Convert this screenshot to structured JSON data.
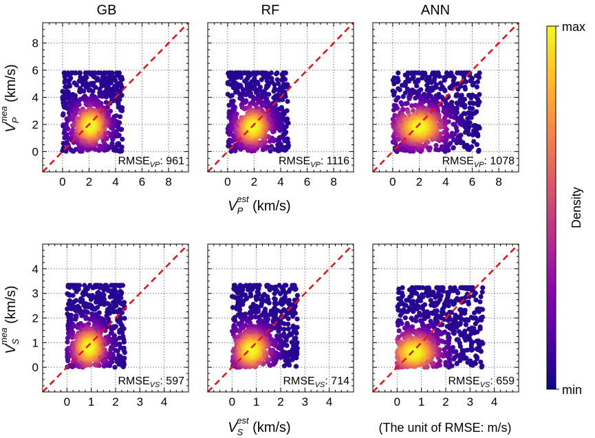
{
  "figure": {
    "column_titles": [
      "GB",
      "RF",
      "ANN"
    ],
    "row_labels": {
      "top": {
        "base": "V",
        "sub": "P",
        "sup": "mea",
        "unit": " (km/s)"
      },
      "bottom": {
        "base": "V",
        "sub": "S",
        "sup": "mea",
        "unit": " (km/s)"
      }
    },
    "x_labels": {
      "top": {
        "base": "V",
        "sub": "P",
        "sup": "est",
        "unit": " (km/s)"
      },
      "bottom": {
        "base": "V",
        "sub": "S",
        "sup": "est",
        "unit": " (km/s)"
      }
    },
    "unit_note": "(The unit of RMSE: m/s)",
    "colorbar": {
      "top_label": "max",
      "bottom_label": "min",
      "title": "Density",
      "colors": [
        "#0d0887",
        "#5302a3",
        "#8b0aa5",
        "#b83289",
        "#db5c68",
        "#f48849",
        "#febd2a",
        "#f0f921"
      ]
    }
  },
  "chart_data": [
    {
      "type": "scatter",
      "title": "GB",
      "row": "top",
      "col": 0,
      "xlabel": "V_P^est (km/s)",
      "ylabel": "V_P^mea (km/s)",
      "xlim": [
        -1.5,
        9.5
      ],
      "ylim": [
        -1.5,
        9.5
      ],
      "ticks": [
        0,
        2,
        4,
        6,
        8
      ],
      "tick_labels": [
        "0",
        "2",
        "4",
        "6",
        "8"
      ],
      "reference_line": "y = x",
      "rmse": {
        "text": "RMSE",
        "sub": "VP",
        "value": ": 961",
        "number": 961
      },
      "density_peak": [
        2.1,
        1.9
      ],
      "cloud_x": [
        0.0,
        5.5
      ],
      "cloud_y": [
        0.0,
        6.1
      ]
    },
    {
      "type": "scatter",
      "title": "RF",
      "row": "top",
      "col": 1,
      "xlabel": "V_P^est (km/s)",
      "ylabel": "V_P^mea (km/s)",
      "xlim": [
        -1.5,
        9.5
      ],
      "ylim": [
        -1.5,
        9.5
      ],
      "ticks": [
        0,
        2,
        4,
        6,
        8
      ],
      "tick_labels": [
        "0",
        "2",
        "4",
        "6",
        "8"
      ],
      "reference_line": "y = x",
      "rmse": {
        "text": "RMSE",
        "sub": "VP",
        "value": ": 1116",
        "number": 1116
      },
      "density_peak": [
        1.9,
        1.8
      ],
      "cloud_x": [
        0.0,
        5.6
      ],
      "cloud_y": [
        0.0,
        6.1
      ]
    },
    {
      "type": "scatter",
      "title": "ANN",
      "row": "top",
      "col": 2,
      "xlabel": "V_P^est (km/s)",
      "ylabel": "V_P^mea (km/s)",
      "xlim": [
        -1.5,
        9.5
      ],
      "ylim": [
        -1.5,
        9.5
      ],
      "ticks": [
        0,
        2,
        4,
        6,
        8
      ],
      "tick_labels": [
        "0",
        "2",
        "4",
        "6",
        "8"
      ],
      "reference_line": "y = x",
      "rmse": {
        "text": "RMSE",
        "sub": "VP",
        "value": ": 1078",
        "number": 1078
      },
      "density_peak": [
        2.0,
        1.8
      ],
      "cloud_x": [
        0.0,
        8.0
      ],
      "cloud_y": [
        0.0,
        6.1
      ]
    },
    {
      "type": "scatter",
      "title": "GB",
      "row": "bottom",
      "col": 0,
      "xlabel": "V_S^est (km/s)",
      "ylabel": "V_S^mea (km/s)",
      "xlim": [
        -1.0,
        5.0
      ],
      "ylim": [
        -1.0,
        5.0
      ],
      "ticks": [
        0,
        1,
        2,
        3,
        4
      ],
      "tick_labels": [
        "0",
        "1",
        "2",
        "3",
        "4"
      ],
      "reference_line": "y = x",
      "rmse": {
        "text": "RMSE",
        "sub": "VS",
        "value": ": 597",
        "number": 597
      },
      "density_peak": [
        0.9,
        0.8
      ],
      "cloud_x": [
        0.0,
        2.9
      ],
      "cloud_y": [
        0.0,
        3.5
      ]
    },
    {
      "type": "scatter",
      "title": "RF",
      "row": "bottom",
      "col": 1,
      "xlabel": "V_S^est (km/s)",
      "ylabel": "V_S^mea (km/s)",
      "xlim": [
        -1.0,
        5.0
      ],
      "ylim": [
        -1.0,
        5.0
      ],
      "ticks": [
        0,
        1,
        2,
        3,
        4
      ],
      "tick_labels": [
        "0",
        "1",
        "2",
        "3",
        "4"
      ],
      "reference_line": "y = x",
      "rmse": {
        "text": "RMSE",
        "sub": "VS",
        "value": ": 714",
        "number": 714
      },
      "density_peak": [
        0.8,
        0.7
      ],
      "cloud_x": [
        0.0,
        3.3
      ],
      "cloud_y": [
        0.0,
        3.5
      ]
    },
    {
      "type": "scatter",
      "title": "ANN",
      "row": "bottom",
      "col": 2,
      "xlabel": "V_S^est (km/s)",
      "ylabel": "V_S^mea (km/s)",
      "xlim": [
        -1.0,
        5.0
      ],
      "ylim": [
        -1.0,
        5.0
      ],
      "ticks": [
        0,
        1,
        2,
        3,
        4
      ],
      "tick_labels": [
        "0",
        "1",
        "2",
        "3",
        "4"
      ],
      "reference_line": "y = x",
      "rmse": {
        "text": "RMSE",
        "sub": "VS",
        "value": ": 659",
        "number": 659
      },
      "density_peak": [
        0.7,
        0.6
      ],
      "cloud_x": [
        0.0,
        4.3
      ],
      "cloud_y": [
        0.0,
        3.4
      ]
    }
  ]
}
